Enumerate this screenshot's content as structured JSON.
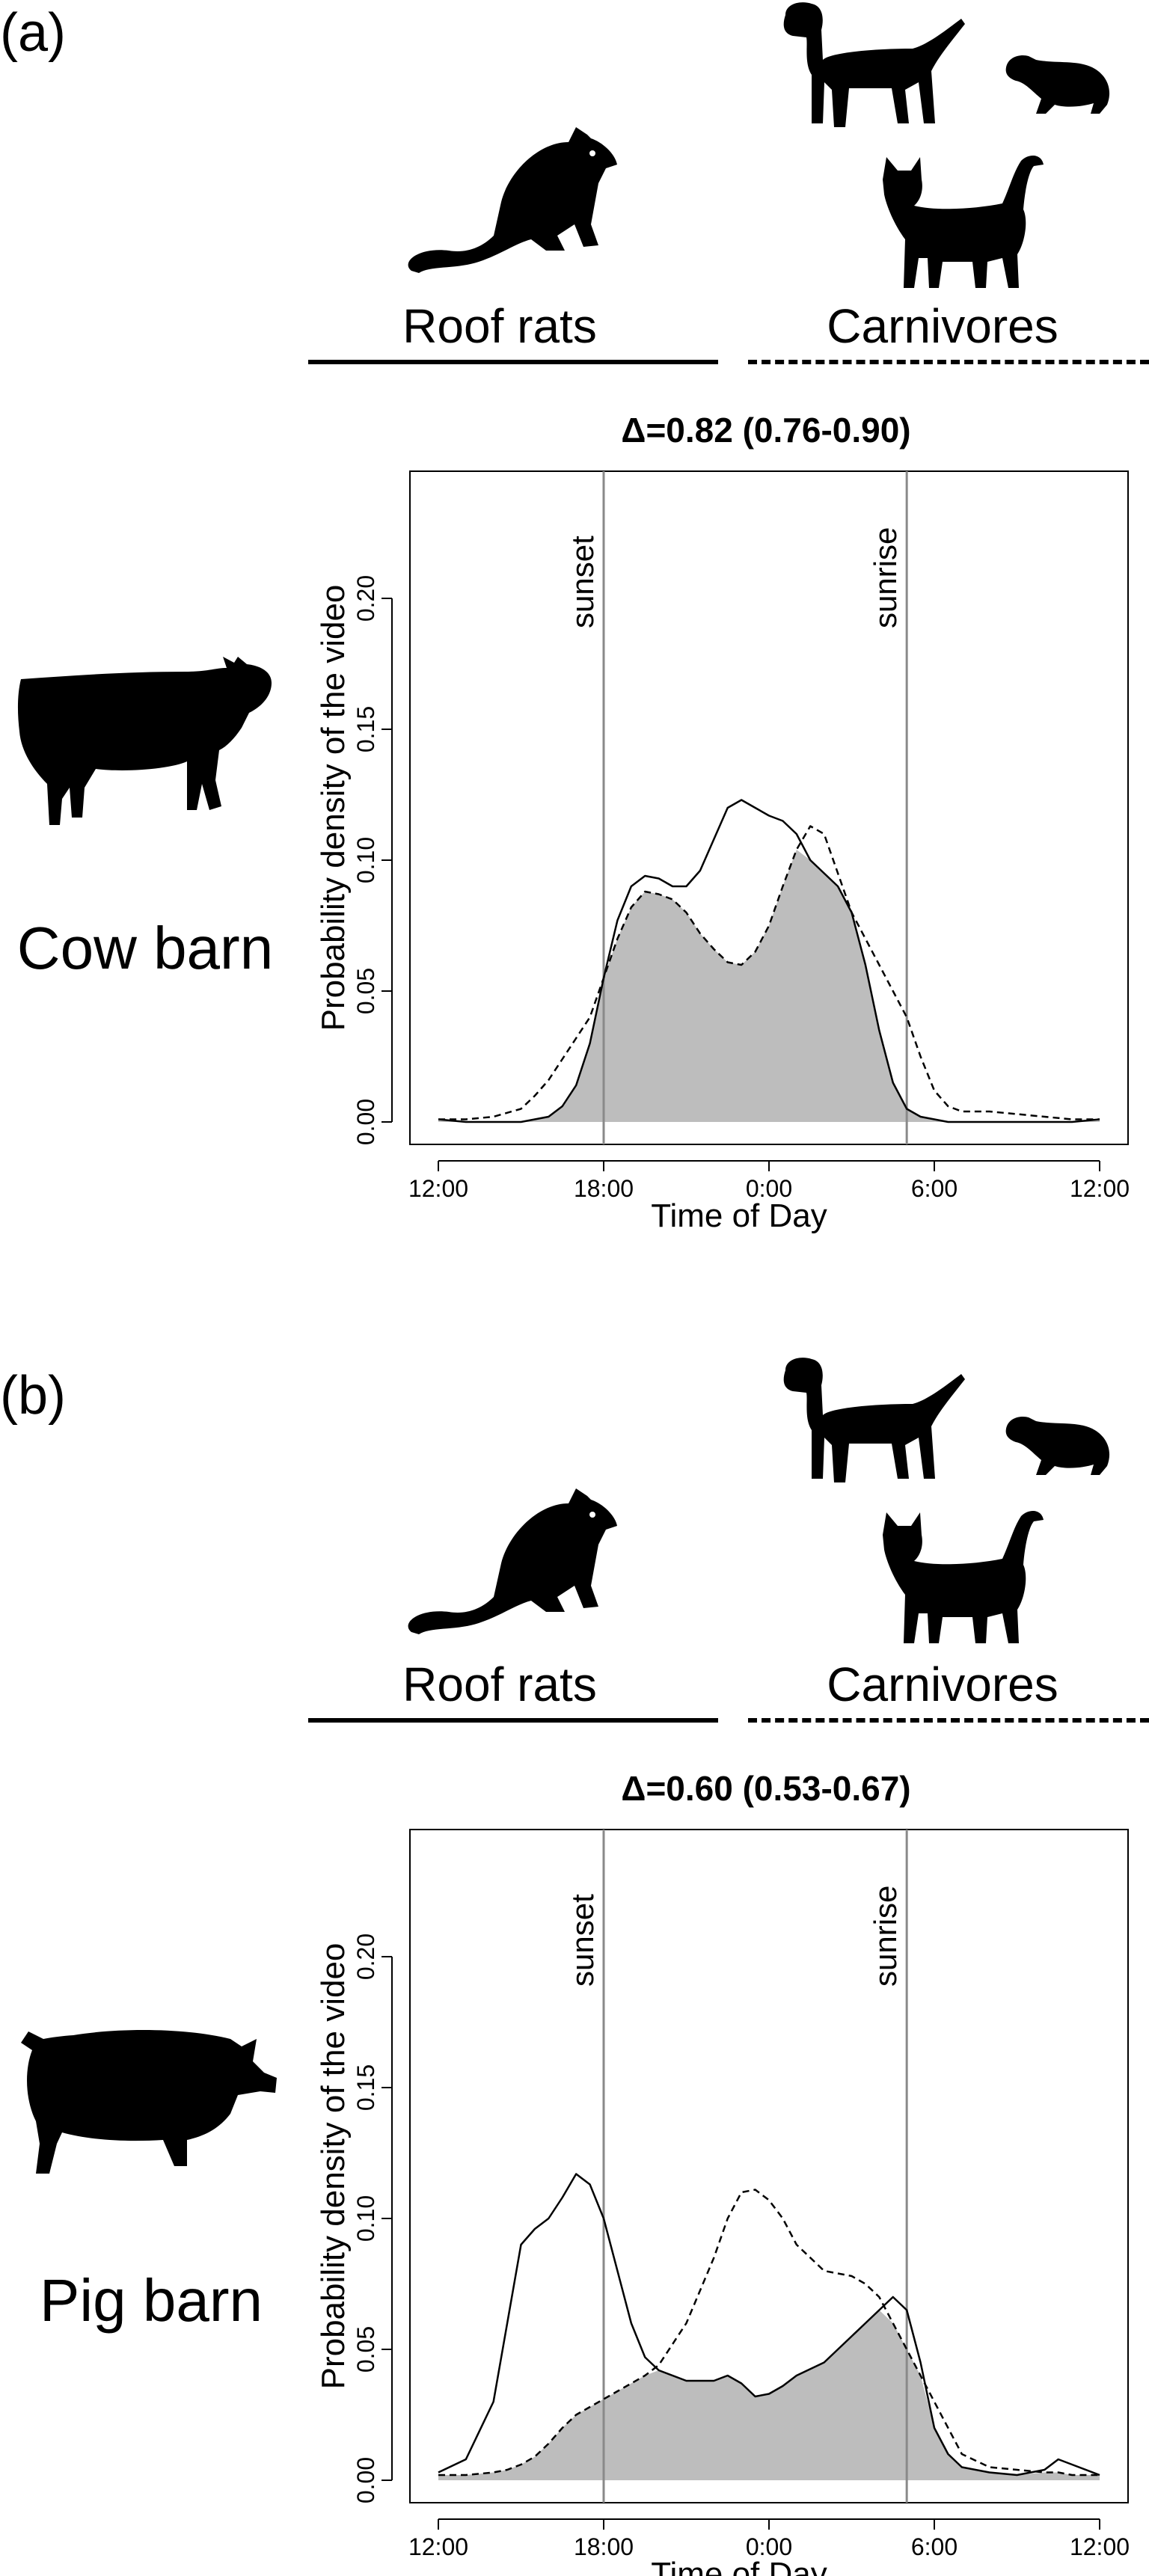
{
  "panels": [
    {
      "label": "(a)",
      "group_left": "Roof rats",
      "group_right": "Carnivores",
      "barn_label": "Cow barn",
      "barn_icon": "cow-icon",
      "chart_title": "Δ=0.82 (0.76-0.90)"
    },
    {
      "label": "(b)",
      "group_left": "Roof rats",
      "group_right": "Carnivores",
      "barn_label": "Pig barn",
      "barn_icon": "pig-icon",
      "chart_title": "Δ=0.60 (0.53-0.67)"
    }
  ],
  "icons": [
    "rat-icon",
    "dog-icon",
    "ferret-icon",
    "cat-icon"
  ],
  "chart_data": [
    {
      "type": "line",
      "title": "Δ=0.82 (0.76-0.90)",
      "xlabel": "Time of Day",
      "ylabel": "Probability density of the video",
      "x_tick_labels": [
        "12:00",
        "18:00",
        "0:00",
        "6:00",
        "12:00"
      ],
      "x_tick_hours": [
        0,
        6,
        12,
        18,
        24
      ],
      "ylim": [
        0,
        0.24
      ],
      "y_ticks": [
        "0.00",
        "0.05",
        "0.10",
        "0.15",
        "0.20"
      ],
      "y_tick_values": [
        0,
        0.05,
        0.1,
        0.15,
        0.2
      ],
      "vlines": [
        {
          "label": "sunset",
          "hour": 6
        },
        {
          "label": "sunrise",
          "hour": 17
        }
      ],
      "overlap_fill": "#bdbdbd",
      "x_hours": [
        0,
        1,
        2,
        3,
        3.5,
        4,
        4.5,
        5,
        5.5,
        6,
        6.5,
        7,
        7.5,
        8,
        8.5,
        9,
        9.5,
        10,
        10.5,
        11,
        11.5,
        12,
        12.5,
        13,
        13.5,
        14,
        14.5,
        15,
        15.5,
        16,
        16.5,
        17,
        17.5,
        18,
        18.5,
        19,
        19.5,
        20,
        21,
        22,
        23,
        24
      ],
      "series": [
        {
          "name": "Roof rats",
          "style": "solid",
          "values": [
            0.001,
            0.0,
            0.0,
            0.0,
            0.001,
            0.002,
            0.006,
            0.014,
            0.03,
            0.055,
            0.077,
            0.09,
            0.094,
            0.093,
            0.09,
            0.09,
            0.096,
            0.108,
            0.12,
            0.123,
            0.12,
            0.117,
            0.115,
            0.11,
            0.1,
            0.095,
            0.09,
            0.08,
            0.06,
            0.035,
            0.015,
            0.005,
            0.002,
            0.001,
            0.0,
            0.0,
            0.0,
            0.0,
            0.0,
            0.0,
            0.0,
            0.001
          ]
        },
        {
          "name": "Carnivores",
          "style": "dashed",
          "values": [
            0.001,
            0.001,
            0.002,
            0.005,
            0.01,
            0.016,
            0.024,
            0.032,
            0.04,
            0.055,
            0.07,
            0.082,
            0.088,
            0.087,
            0.085,
            0.08,
            0.072,
            0.066,
            0.061,
            0.06,
            0.065,
            0.075,
            0.09,
            0.104,
            0.113,
            0.11,
            0.095,
            0.08,
            0.07,
            0.06,
            0.05,
            0.04,
            0.025,
            0.012,
            0.006,
            0.004,
            0.004,
            0.004,
            0.003,
            0.002,
            0.001,
            0.001
          ]
        }
      ]
    },
    {
      "type": "line",
      "title": "Δ=0.60 (0.53-0.67)",
      "xlabel": "Time of Day",
      "ylabel": "Probability density of the video",
      "x_tick_labels": [
        "12:00",
        "18:00",
        "0:00",
        "6:00",
        "12:00"
      ],
      "x_tick_hours": [
        0,
        6,
        12,
        18,
        24
      ],
      "ylim": [
        0,
        0.24
      ],
      "y_ticks": [
        "0.00",
        "0.05",
        "0.10",
        "0.15",
        "0.20"
      ],
      "y_tick_values": [
        0,
        0.05,
        0.1,
        0.15,
        0.2
      ],
      "vlines": [
        {
          "label": "sunset",
          "hour": 6
        },
        {
          "label": "sunrise",
          "hour": 17
        }
      ],
      "overlap_fill": "#bdbdbd",
      "x_hours": [
        0,
        1,
        2,
        2.5,
        3,
        3.5,
        4,
        4.5,
        5,
        5.5,
        6,
        6.5,
        7,
        7.5,
        8,
        9,
        10,
        10.5,
        11,
        11.5,
        12,
        12.5,
        13,
        14,
        15,
        15.5,
        16,
        16.5,
        17,
        17.5,
        18,
        18.5,
        19,
        20,
        21,
        22,
        22.5,
        23,
        24
      ],
      "series": [
        {
          "name": "Roof rats",
          "style": "solid",
          "values": [
            0.003,
            0.008,
            0.03,
            0.06,
            0.09,
            0.096,
            0.1,
            0.108,
            0.117,
            0.113,
            0.1,
            0.08,
            0.06,
            0.047,
            0.042,
            0.038,
            0.038,
            0.04,
            0.037,
            0.032,
            0.033,
            0.036,
            0.04,
            0.045,
            0.055,
            0.06,
            0.065,
            0.07,
            0.065,
            0.045,
            0.02,
            0.01,
            0.005,
            0.003,
            0.002,
            0.004,
            0.008,
            0.006,
            0.002
          ]
        },
        {
          "name": "Carnivores",
          "style": "dashed",
          "values": [
            0.002,
            0.002,
            0.003,
            0.004,
            0.006,
            0.009,
            0.014,
            0.02,
            0.025,
            0.028,
            0.031,
            0.034,
            0.037,
            0.04,
            0.044,
            0.06,
            0.085,
            0.1,
            0.11,
            0.111,
            0.107,
            0.1,
            0.09,
            0.08,
            0.078,
            0.075,
            0.07,
            0.06,
            0.05,
            0.04,
            0.03,
            0.02,
            0.01,
            0.005,
            0.004,
            0.003,
            0.003,
            0.002,
            0.002
          ]
        }
      ]
    }
  ]
}
